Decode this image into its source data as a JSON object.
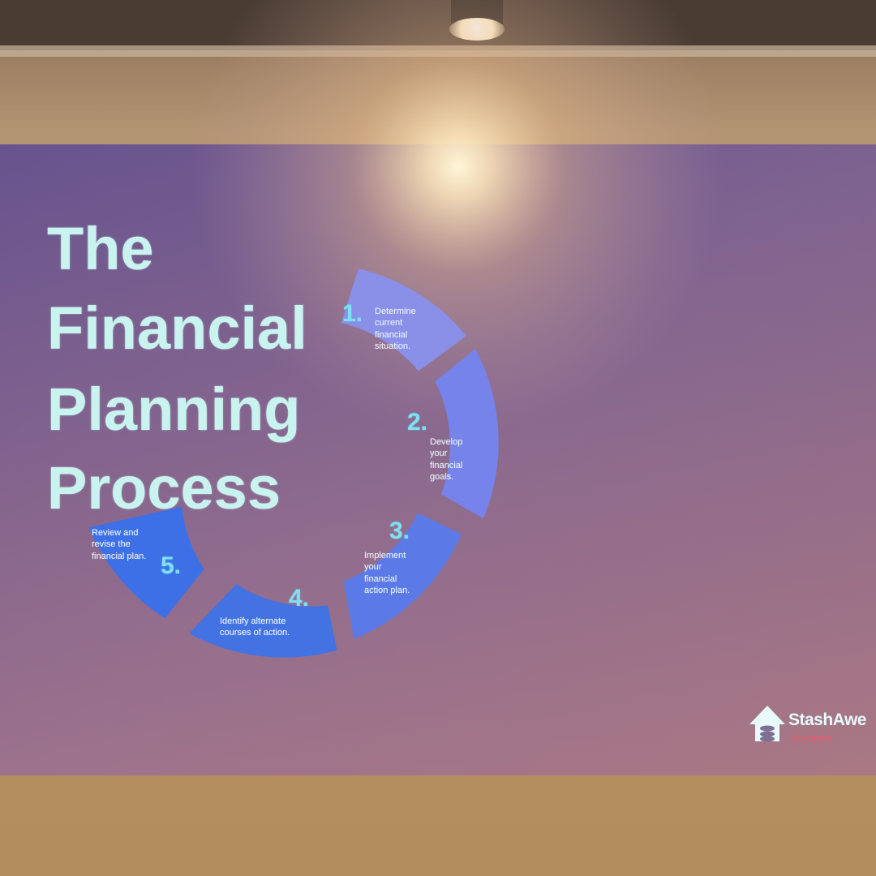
{
  "title_lines": [
    "The",
    "Financial",
    "Planning",
    "Process"
  ],
  "steps": [
    {
      "number": "1.",
      "lines": [
        "Determine",
        "current",
        "financial",
        "situation."
      ]
    },
    {
      "number": "2.",
      "lines": [
        "Develop",
        "your",
        "financial",
        "goals."
      ]
    },
    {
      "number": "3.",
      "lines": [
        "Implement",
        "your",
        "financial",
        "action plan."
      ]
    },
    {
      "number": "4.",
      "lines": [
        "Identify alternate",
        "courses of action."
      ]
    },
    {
      "number": "5.",
      "lines": [
        "Review and",
        "revise the",
        "financial plan."
      ]
    }
  ],
  "brand": {
    "name": "StashAwe",
    "subtitle": "Academy",
    "icon": "house-coins-icon"
  },
  "colors": {
    "wall": "#a98a66",
    "screen": "#8b6a9a",
    "segment_light": "#8a8fe8",
    "segment_dark": "#3f72e6",
    "title_text": "#c9f3ef",
    "number_text": "#7ee0f0",
    "brand_accent": "#ef5a68"
  }
}
